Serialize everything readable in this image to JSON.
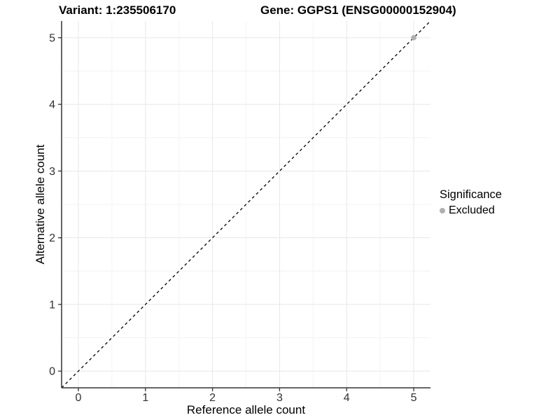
{
  "titles": {
    "variant": "Variant: 1:235506170",
    "gene": "Gene: GGPS1 (ENSG00000152904)"
  },
  "legend": {
    "title": "Significance",
    "items": [
      {
        "label": "Excluded",
        "marker": "circle-icon",
        "color": "#b0b0b0"
      }
    ]
  },
  "chart_data": {
    "type": "scatter",
    "title_left": "Variant: 1:235506170",
    "title_right": "Gene: GGPS1 (ENSG00000152904)",
    "xlabel": "Reference allele count",
    "ylabel": "Alternative allele count",
    "xlim": [
      -0.25,
      5.25
    ],
    "ylim": [
      -0.25,
      5.25
    ],
    "x_ticks": [
      0,
      1,
      2,
      3,
      4,
      5
    ],
    "y_ticks": [
      0,
      1,
      2,
      3,
      4,
      5
    ],
    "minor_grid_positions": [
      0.5,
      1.5,
      2.5,
      3.5,
      4.5
    ],
    "grid": true,
    "legend_position": "right",
    "series": [
      {
        "name": "Excluded",
        "color": "#b0b0b0",
        "points": [
          [
            5,
            5
          ]
        ]
      }
    ],
    "reference_line": {
      "type": "identity",
      "style": "dashed",
      "color": "#000000",
      "from": [
        -0.25,
        -0.25
      ],
      "to": [
        5.25,
        5.25
      ]
    },
    "colors": {
      "background": "#ffffff",
      "grid_major": "#e8e8e8",
      "grid_minor": "#f3f3f3",
      "axis_line": "#333333",
      "tick_label": "#303030",
      "title": "#000000",
      "point": "#b0b0b0"
    }
  }
}
